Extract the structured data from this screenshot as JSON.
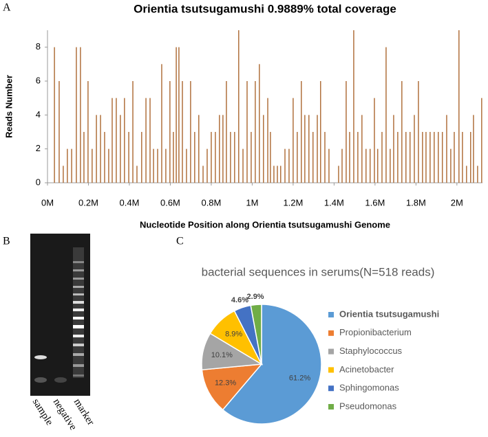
{
  "chart_data": [
    {
      "type": "bar",
      "panel_label": "A",
      "title": "Orientia tsutsugamushi 0.9889% total coverage",
      "xlabel": "Nucleotide Position along  Orientia tsutsugamushi  Genome",
      "ylabel": "Reads Number",
      "color": "#b0703c",
      "x": [
        34000,
        57000,
        77000,
        97000,
        118000,
        141000,
        161000,
        178000,
        198000,
        218000,
        239000,
        259000,
        279000,
        299000,
        316000,
        336000,
        356000,
        376000,
        397000,
        417000,
        437000,
        460000,
        481000,
        501000,
        518000,
        538000,
        558000,
        578000,
        598000,
        615000,
        629000,
        642000,
        659000,
        679000,
        699000,
        719000,
        739000,
        760000,
        780000,
        800000,
        820000,
        840000,
        857000,
        874000,
        894000,
        914000,
        934000,
        955000,
        975000,
        995000,
        1015000,
        1035000,
        1055000,
        1076000,
        1089000,
        1106000,
        1123000,
        1139000,
        1160000,
        1180000,
        1200000,
        1220000,
        1240000,
        1257000,
        1277000,
        1297000,
        1318000,
        1334000,
        1355000,
        1375000,
        1422000,
        1439000,
        1459000,
        1476000,
        1496000,
        1516000,
        1536000,
        1556000,
        1576000,
        1597000,
        1613000,
        1634000,
        1654000,
        1674000,
        1691000,
        1711000,
        1731000,
        1751000,
        1771000,
        1792000,
        1812000,
        1832000,
        1849000,
        1869000,
        1889000,
        1909000,
        1929000,
        1950000,
        1970000,
        1987000,
        2010000,
        2027000,
        2047000,
        2067000,
        2081000,
        2101000,
        2121000
      ],
      "values": [
        8,
        6,
        1,
        2,
        2,
        8,
        8,
        3,
        6,
        2,
        4,
        4,
        3,
        2,
        5,
        5,
        4,
        5,
        3,
        6,
        1,
        3,
        5,
        5,
        2,
        2,
        7,
        2,
        6,
        3,
        8,
        8,
        6,
        2,
        6,
        3,
        4,
        1,
        2,
        3,
        3,
        4,
        4,
        6,
        3,
        3,
        9,
        2,
        6,
        3,
        6,
        7,
        4,
        5,
        3,
        1,
        1,
        1,
        2,
        2,
        5,
        3,
        6,
        4,
        4,
        3,
        4,
        6,
        3,
        2,
        1,
        2,
        6,
        3,
        9,
        3,
        4,
        2,
        2,
        5,
        2,
        3,
        8,
        2,
        4,
        3,
        6,
        3,
        3,
        4,
        6,
        3,
        3,
        3,
        3,
        3,
        3,
        4,
        2,
        3,
        9,
        3,
        1,
        3,
        4,
        1,
        5
      ],
      "xlim": [
        0,
        2125000
      ],
      "xticks": [
        {
          "value": 0,
          "label": "0M"
        },
        {
          "value": 200000,
          "label": "0.2M"
        },
        {
          "value": 400000,
          "label": "0.4M"
        },
        {
          "value": 600000,
          "label": "0.6M"
        },
        {
          "value": 800000,
          "label": "0.8M"
        },
        {
          "value": 1000000,
          "label": "1M"
        },
        {
          "value": 1200000,
          "label": "1.2M"
        },
        {
          "value": 1400000,
          "label": "1.4M"
        },
        {
          "value": 1600000,
          "label": "1.6M"
        },
        {
          "value": 1800000,
          "label": "1.8M"
        },
        {
          "value": 2000000,
          "label": "2M"
        }
      ],
      "ylim": [
        0,
        9
      ],
      "yticks": [
        0,
        2,
        4,
        6,
        8
      ]
    },
    {
      "type": "pie",
      "panel_label": "C",
      "title": "bacterial sequences in serums(N=518 reads)",
      "categories": [
        "Orientia tsutsugamushi",
        "Propionibacterium",
        "Staphylococcus",
        "Acinetobacter",
        "Sphingomonas",
        "Pseudomonas"
      ],
      "values": [
        61.2,
        12.3,
        10.1,
        8.9,
        4.6,
        2.9
      ],
      "value_labels": [
        "61.2%",
        "12.3%",
        "10.1%",
        "8.9%",
        "4.6%",
        "2.9%"
      ],
      "colors": [
        "#5b9bd5",
        "#ed7d31",
        "#a5a5a5",
        "#ffc000",
        "#4472c4",
        "#70ad47"
      ]
    }
  ],
  "gel": {
    "panel_label": "B",
    "lanes": [
      "sample",
      "negative",
      "marker"
    ]
  }
}
